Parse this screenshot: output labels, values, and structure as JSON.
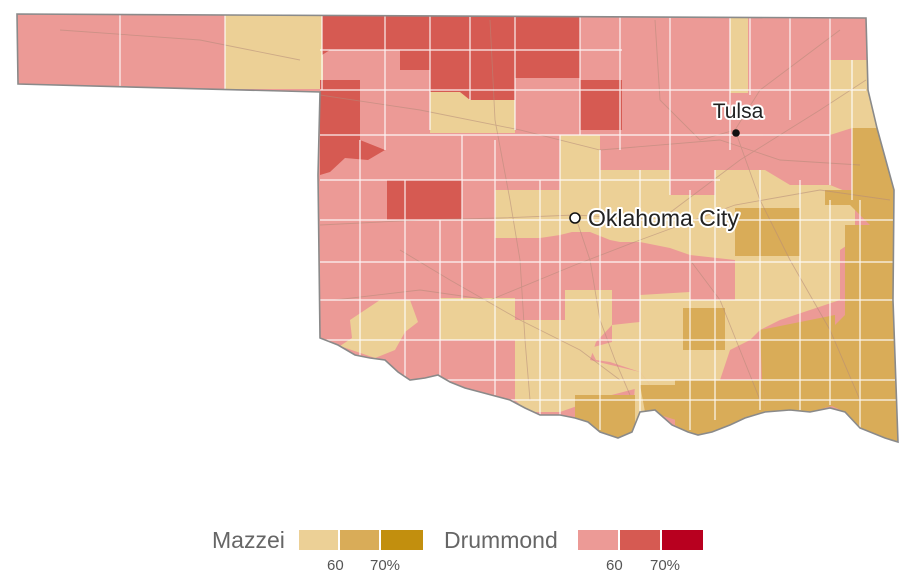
{
  "map": {
    "cities": [
      {
        "name": "Tulsa",
        "marker": "dot"
      },
      {
        "name": "Oklahoma City",
        "marker": "ring"
      }
    ]
  },
  "legend": {
    "mazzei": {
      "label": "Mazzei",
      "colors": [
        "#ecd096",
        "#d9ac58",
        "#c28f0e"
      ],
      "ticks": [
        "60",
        "70%"
      ]
    },
    "drummond": {
      "label": "Drummond",
      "colors": [
        "#ec9a96",
        "#d65a52",
        "#b8001f"
      ],
      "ticks": [
        "60",
        "70%"
      ]
    }
  },
  "colors": {
    "border": "#8a8a8a",
    "county_lines": "#ffffff",
    "roads": "#b48a7a"
  }
}
